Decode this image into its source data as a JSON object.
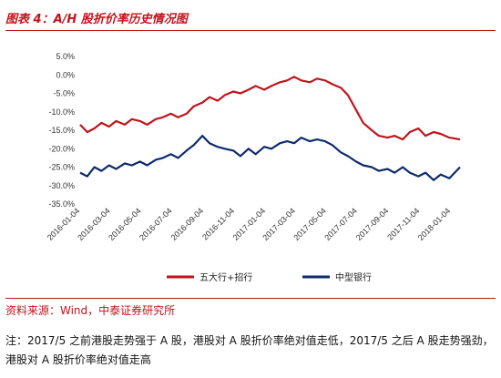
{
  "figure": {
    "title": "图表 4：A/H 股折价率历史情况图",
    "source": "资料来源：Wind，中泰证券研究所",
    "note": "注：2017/5 之前港股走势强于 A 股，港股对 A 股折价率绝对值走低，2017/5 之后 A 股走势强劲，港股对 A 股折价率绝对值走高"
  },
  "chart_data": {
    "type": "line",
    "title": "",
    "xlabel": "",
    "ylabel": "",
    "ylim": [
      -35,
      5
    ],
    "y_ticks": [
      5,
      0,
      -5,
      -10,
      -15,
      -20,
      -25,
      -30,
      -35
    ],
    "y_tick_labels": [
      "5.0%",
      "0.0%",
      "-5.0%",
      "-10.0%",
      "-15.0%",
      "-20.0%",
      "-25.0%",
      "-30.0%",
      "-35.0%"
    ],
    "y_unit": "%",
    "x_tick_labels": [
      "2016-01-04",
      "2016-03-04",
      "2016-05-04",
      "2016-07-04",
      "2016-09-04",
      "2016-11-04",
      "2017-01-04",
      "2017-03-04",
      "2017-05-04",
      "2017-07-04",
      "2017-09-04",
      "2017-11-04",
      "2018-01-04"
    ],
    "x_range": [
      "2016-01-04",
      "2018-01-22"
    ],
    "legend_position": "bottom",
    "grid": false,
    "series": [
      {
        "name": "五大行+招行",
        "color": "#c0141b",
        "points": [
          [
            "2016-01-04",
            -13.5
          ],
          [
            "2016-01-18",
            -15.5
          ],
          [
            "2016-02-01",
            -14.5
          ],
          [
            "2016-02-15",
            -13.0
          ],
          [
            "2016-03-01",
            -14.0
          ],
          [
            "2016-03-15",
            -12.5
          ],
          [
            "2016-04-01",
            -13.5
          ],
          [
            "2016-04-15",
            -12.0
          ],
          [
            "2016-05-01",
            -12.5
          ],
          [
            "2016-05-15",
            -13.5
          ],
          [
            "2016-06-01",
            -12.0
          ],
          [
            "2016-06-15",
            -11.5
          ],
          [
            "2016-07-01",
            -10.5
          ],
          [
            "2016-07-15",
            -11.5
          ],
          [
            "2016-08-01",
            -10.5
          ],
          [
            "2016-08-15",
            -8.5
          ],
          [
            "2016-09-01",
            -7.5
          ],
          [
            "2016-09-15",
            -6.0
          ],
          [
            "2016-10-01",
            -7.0
          ],
          [
            "2016-10-15",
            -5.5
          ],
          [
            "2016-11-01",
            -4.5
          ],
          [
            "2016-11-15",
            -5.0
          ],
          [
            "2016-12-01",
            -4.0
          ],
          [
            "2016-12-15",
            -3.0
          ],
          [
            "2017-01-01",
            -4.0
          ],
          [
            "2017-01-15",
            -3.0
          ],
          [
            "2017-02-01",
            -2.0
          ],
          [
            "2017-02-15",
            -1.5
          ],
          [
            "2017-03-01",
            -0.5
          ],
          [
            "2017-03-15",
            -1.5
          ],
          [
            "2017-04-01",
            -2.0
          ],
          [
            "2017-04-15",
            -1.0
          ],
          [
            "2017-05-01",
            -1.5
          ],
          [
            "2017-05-15",
            -2.5
          ],
          [
            "2017-06-01",
            -3.5
          ],
          [
            "2017-06-15",
            -5.5
          ],
          [
            "2017-07-01",
            -9.5
          ],
          [
            "2017-07-15",
            -13.0
          ],
          [
            "2017-08-01",
            -15.0
          ],
          [
            "2017-08-15",
            -16.5
          ],
          [
            "2017-09-01",
            -17.0
          ],
          [
            "2017-09-15",
            -16.5
          ],
          [
            "2017-10-01",
            -17.5
          ],
          [
            "2017-10-15",
            -15.5
          ],
          [
            "2017-11-01",
            -14.5
          ],
          [
            "2017-11-15",
            -16.5
          ],
          [
            "2017-12-01",
            -15.5
          ],
          [
            "2017-12-15",
            -16.0
          ],
          [
            "2018-01-01",
            -17.0
          ],
          [
            "2018-01-22",
            -17.5
          ]
        ]
      },
      {
        "name": "中型银行",
        "color": "#0d2b6b",
        "points": [
          [
            "2016-01-04",
            -26.5
          ],
          [
            "2016-01-18",
            -27.5
          ],
          [
            "2016-02-01",
            -25.0
          ],
          [
            "2016-02-15",
            -26.0
          ],
          [
            "2016-03-01",
            -24.5
          ],
          [
            "2016-03-15",
            -25.5
          ],
          [
            "2016-04-01",
            -24.0
          ],
          [
            "2016-04-15",
            -24.5
          ],
          [
            "2016-05-01",
            -23.5
          ],
          [
            "2016-05-15",
            -24.5
          ],
          [
            "2016-06-01",
            -23.0
          ],
          [
            "2016-06-15",
            -22.5
          ],
          [
            "2016-07-01",
            -21.5
          ],
          [
            "2016-07-15",
            -22.5
          ],
          [
            "2016-08-01",
            -20.5
          ],
          [
            "2016-08-15",
            -19.0
          ],
          [
            "2016-09-01",
            -16.5
          ],
          [
            "2016-09-15",
            -18.5
          ],
          [
            "2016-10-01",
            -19.5
          ],
          [
            "2016-10-15",
            -20.0
          ],
          [
            "2016-11-01",
            -20.5
          ],
          [
            "2016-11-15",
            -22.0
          ],
          [
            "2016-12-01",
            -20.0
          ],
          [
            "2016-12-15",
            -21.5
          ],
          [
            "2017-01-01",
            -19.5
          ],
          [
            "2017-01-15",
            -20.0
          ],
          [
            "2017-02-01",
            -18.5
          ],
          [
            "2017-02-15",
            -18.0
          ],
          [
            "2017-03-01",
            -18.5
          ],
          [
            "2017-03-15",
            -17.0
          ],
          [
            "2017-04-01",
            -18.0
          ],
          [
            "2017-04-15",
            -17.5
          ],
          [
            "2017-05-01",
            -18.0
          ],
          [
            "2017-05-15",
            -19.0
          ],
          [
            "2017-06-01",
            -21.0
          ],
          [
            "2017-06-15",
            -22.0
          ],
          [
            "2017-07-01",
            -23.5
          ],
          [
            "2017-07-15",
            -24.5
          ],
          [
            "2017-08-01",
            -25.0
          ],
          [
            "2017-08-15",
            -26.0
          ],
          [
            "2017-09-01",
            -25.5
          ],
          [
            "2017-09-15",
            -26.5
          ],
          [
            "2017-10-01",
            -25.0
          ],
          [
            "2017-10-15",
            -26.5
          ],
          [
            "2017-11-01",
            -27.5
          ],
          [
            "2017-11-15",
            -26.5
          ],
          [
            "2017-12-01",
            -28.5
          ],
          [
            "2017-12-15",
            -27.0
          ],
          [
            "2018-01-01",
            -28.0
          ],
          [
            "2018-01-22",
            -25.0
          ]
        ]
      }
    ]
  }
}
